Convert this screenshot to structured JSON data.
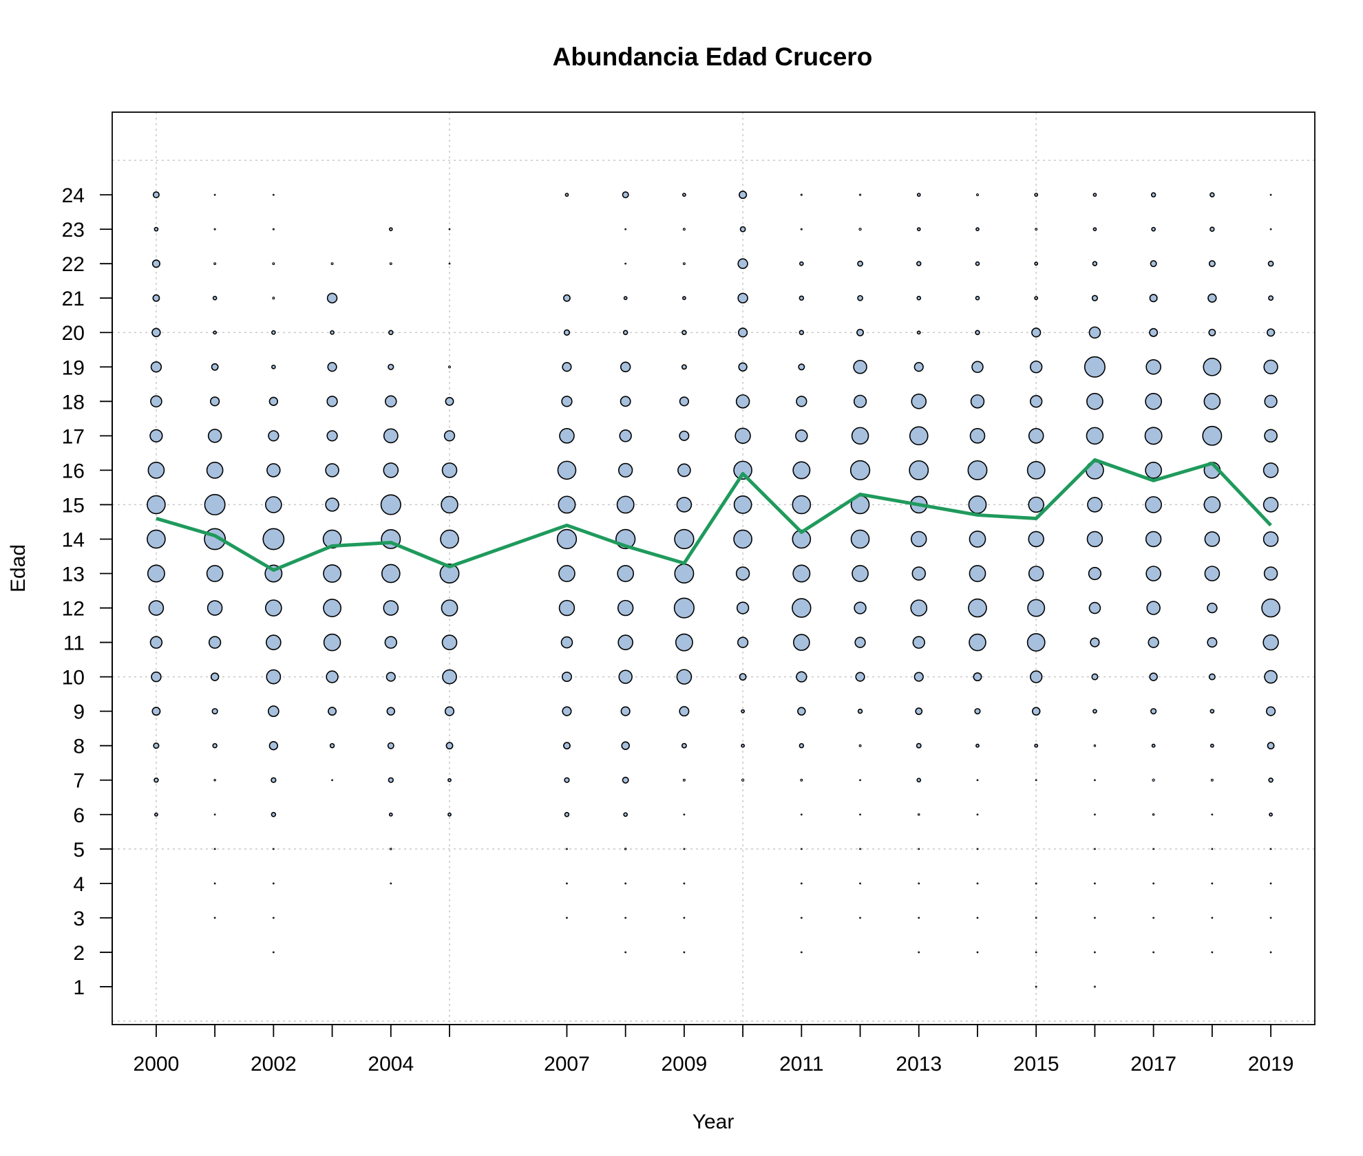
{
  "chart_data": {
    "type": "scatter",
    "subtype": "bubble",
    "title": "Abundancia Edad Crucero",
    "xlabel": "Year",
    "ylabel": "Edad",
    "xlim": [
      1999.25,
      2019.75
    ],
    "ylim": [
      -0.1,
      26.4
    ],
    "x_ticks": [
      2000,
      2001,
      2002,
      2003,
      2004,
      2005,
      2007,
      2008,
      2009,
      2010,
      2011,
      2012,
      2013,
      2014,
      2015,
      2016,
      2017,
      2018,
      2019
    ],
    "x_tick_labels": [
      "2000",
      "",
      "2002",
      "",
      "2004",
      "",
      "2007",
      "",
      "2009",
      "",
      "2011",
      "",
      "2013",
      "",
      "2015",
      "",
      "2017",
      "",
      "2019"
    ],
    "y_ticks": [
      1,
      2,
      3,
      4,
      5,
      6,
      7,
      8,
      9,
      10,
      11,
      12,
      13,
      14,
      15,
      16,
      17,
      18,
      19,
      20,
      21,
      22,
      23,
      24
    ],
    "y_tick_labels": [
      "1",
      "2",
      "3",
      "4",
      "5",
      "6",
      "7",
      "8",
      "9",
      "10",
      "11",
      "12",
      "13",
      "14",
      "15",
      "16",
      "17",
      "18",
      "19",
      "20",
      "21",
      "22",
      "23",
      "24"
    ],
    "grid": true,
    "grid_x": [
      2000,
      2005,
      2010,
      2015
    ],
    "grid_y": [
      0,
      5,
      10,
      15,
      20,
      25
    ],
    "colors": {
      "bubble_fill": "#a7c0de",
      "bubble_edge": "#000000",
      "line": "#1f9a5c",
      "grid": "#c8c8c8"
    },
    "bubble_relative_size_max": 1,
    "series": [
      {
        "kind": "bubbles",
        "ages": [
          24,
          23,
          22,
          21,
          20,
          19,
          18,
          17,
          16,
          15,
          14,
          13,
          12,
          11,
          10,
          9,
          8,
          7,
          6,
          5,
          4,
          3,
          2,
          1
        ],
        "years": [
          {
            "x": 2000,
            "sizes": [
              0.2,
              0.12,
              0.25,
              0.22,
              0.28,
              0.35,
              0.38,
              0.42,
              0.55,
              0.62,
              0.62,
              0.58,
              0.5,
              0.4,
              0.33,
              0.27,
              0.18,
              0.14,
              0.1,
              0,
              0,
              0,
              0,
              0
            ]
          },
          {
            "x": 2001,
            "sizes": [
              0.04,
              0.05,
              0.07,
              0.12,
              0.1,
              0.22,
              0.3,
              0.45,
              0.55,
              0.7,
              0.72,
              0.55,
              0.5,
              0.4,
              0.26,
              0.18,
              0.14,
              0.06,
              0.04,
              0.03,
              0.03,
              0.03,
              0,
              0
            ]
          },
          {
            "x": 2002,
            "sizes": [
              0.04,
              0.05,
              0.07,
              0.07,
              0.12,
              0.12,
              0.28,
              0.35,
              0.45,
              0.55,
              0.72,
              0.58,
              0.55,
              0.5,
              0.48,
              0.36,
              0.28,
              0.16,
              0.14,
              0.03,
              0.03,
              0.03,
              0.03,
              0
            ]
          },
          {
            "x": 2003,
            "sizes": [
              0,
              0,
              0.07,
              0.33,
              0.12,
              0.3,
              0.35,
              0.35,
              0.45,
              0.45,
              0.62,
              0.6,
              0.6,
              0.57,
              0.4,
              0.27,
              0.14,
              0.04,
              0,
              0,
              0,
              0,
              0,
              0
            ]
          },
          {
            "x": 2004,
            "sizes": [
              0,
              0.1,
              0.07,
              0,
              0.14,
              0.18,
              0.38,
              0.48,
              0.5,
              0.68,
              0.65,
              0.62,
              0.5,
              0.4,
              0.3,
              0.26,
              0.2,
              0.16,
              0.1,
              0.06,
              0.04,
              0,
              0,
              0
            ]
          },
          {
            "x": 2005,
            "sizes": [
              0,
              0.04,
              0.04,
              0,
              0,
              0.07,
              0.27,
              0.35,
              0.5,
              0.57,
              0.62,
              0.65,
              0.55,
              0.5,
              0.48,
              0.3,
              0.22,
              0.1,
              0.1,
              0,
              0,
              0,
              0,
              0
            ]
          },
          {
            "x": 2007,
            "sizes": [
              0.1,
              0,
              0,
              0.22,
              0.18,
              0.3,
              0.35,
              0.5,
              0.62,
              0.58,
              0.66,
              0.55,
              0.52,
              0.38,
              0.32,
              0.3,
              0.22,
              0.16,
              0.14,
              0.04,
              0.03,
              0.03,
              0,
              0
            ]
          },
          {
            "x": 2008,
            "sizes": [
              0.2,
              0.04,
              0.04,
              0.1,
              0.14,
              0.33,
              0.34,
              0.4,
              0.47,
              0.58,
              0.66,
              0.55,
              0.52,
              0.5,
              0.45,
              0.3,
              0.26,
              0.2,
              0.12,
              0.06,
              0.03,
              0.03,
              0.03,
              0
            ]
          },
          {
            "x": 2009,
            "sizes": [
              0.1,
              0.07,
              0.07,
              0.1,
              0.14,
              0.15,
              0.3,
              0.32,
              0.43,
              0.5,
              0.66,
              0.65,
              0.68,
              0.58,
              0.5,
              0.32,
              0.15,
              0.07,
              0.03,
              0.02,
              0.03,
              0.03,
              0.03,
              0
            ]
          },
          {
            "x": 2010,
            "sizes": [
              0.25,
              0.17,
              0.33,
              0.33,
              0.3,
              0.28,
              0.45,
              0.52,
              0.62,
              0.6,
              0.62,
              0.45,
              0.4,
              0.35,
              0.22,
              0.1,
              0.1,
              0.08,
              0,
              0,
              0,
              0,
              0,
              0
            ]
          },
          {
            "x": 2011,
            "sizes": [
              0.05,
              0.05,
              0.12,
              0.14,
              0.14,
              0.2,
              0.35,
              0.4,
              0.58,
              0.62,
              0.62,
              0.58,
              0.64,
              0.55,
              0.35,
              0.26,
              0.14,
              0.07,
              0.03,
              0.02,
              0.03,
              0.03,
              0.03,
              0
            ]
          },
          {
            "x": 2012,
            "sizes": [
              0.05,
              0.08,
              0.17,
              0.17,
              0.22,
              0.45,
              0.42,
              0.57,
              0.66,
              0.62,
              0.62,
              0.55,
              0.4,
              0.35,
              0.3,
              0.14,
              0.07,
              0.04,
              0.03,
              0.02,
              0.03,
              0.03,
              0,
              0
            ]
          },
          {
            "x": 2013,
            "sizes": [
              0.1,
              0.1,
              0.14,
              0.12,
              0.1,
              0.3,
              0.5,
              0.62,
              0.65,
              0.57,
              0.52,
              0.45,
              0.55,
              0.4,
              0.3,
              0.22,
              0.15,
              0.12,
              0.06,
              0.02,
              0.03,
              0.03,
              0.03,
              0
            ]
          },
          {
            "x": 2014,
            "sizes": [
              0.07,
              0.1,
              0.12,
              0.12,
              0.14,
              0.38,
              0.45,
              0.5,
              0.65,
              0.6,
              0.55,
              0.55,
              0.62,
              0.57,
              0.27,
              0.18,
              0.1,
              0.04,
              0.03,
              0.02,
              0.03,
              0.03,
              0.03,
              0
            ]
          },
          {
            "x": 2015,
            "sizes": [
              0.1,
              0.07,
              0.1,
              0.1,
              0.3,
              0.4,
              0.4,
              0.5,
              0.6,
              0.52,
              0.52,
              0.5,
              0.58,
              0.6,
              0.4,
              0.26,
              0.1,
              0.04,
              0,
              0,
              0.03,
              0.03,
              0.03,
              0.02
            ]
          },
          {
            "x": 2016,
            "sizes": [
              0.1,
              0.1,
              0.14,
              0.18,
              0.38,
              0.7,
              0.55,
              0.57,
              0.6,
              0.5,
              0.52,
              0.42,
              0.38,
              0.3,
              0.2,
              0.12,
              0.06,
              0.04,
              0.03,
              0.02,
              0.03,
              0.03,
              0.03,
              0.02
            ]
          },
          {
            "x": 2017,
            "sizes": [
              0.14,
              0.12,
              0.2,
              0.25,
              0.27,
              0.5,
              0.55,
              0.58,
              0.55,
              0.55,
              0.52,
              0.5,
              0.45,
              0.35,
              0.26,
              0.18,
              0.1,
              0.08,
              0.06,
              0.04,
              0.03,
              0.03,
              0.03,
              0
            ]
          },
          {
            "x": 2018,
            "sizes": [
              0.14,
              0.14,
              0.2,
              0.28,
              0.22,
              0.6,
              0.55,
              0.65,
              0.55,
              0.55,
              0.5,
              0.5,
              0.33,
              0.32,
              0.2,
              0.12,
              0.1,
              0.07,
              0.04,
              0.02,
              0.03,
              0.03,
              0.03,
              0
            ]
          },
          {
            "x": 2019,
            "sizes": [
              0.04,
              0.04,
              0.17,
              0.15,
              0.25,
              0.47,
              0.42,
              0.43,
              0.5,
              0.5,
              0.5,
              0.45,
              0.62,
              0.52,
              0.43,
              0.3,
              0.22,
              0.14,
              0.1,
              0.02,
              0.03,
              0.03,
              0.03,
              0
            ]
          }
        ]
      },
      {
        "kind": "line",
        "x": [
          2000,
          2001,
          2002,
          2003,
          2004,
          2005,
          2007,
          2008,
          2009,
          2010,
          2011,
          2012,
          2013,
          2014,
          2015,
          2016,
          2017,
          2018,
          2019
        ],
        "y": [
          14.6,
          14.1,
          13.1,
          13.8,
          13.9,
          13.2,
          14.4,
          13.8,
          13.3,
          15.9,
          14.2,
          15.3,
          15.0,
          14.7,
          14.6,
          16.3,
          15.7,
          16.2,
          14.4
        ]
      }
    ]
  }
}
